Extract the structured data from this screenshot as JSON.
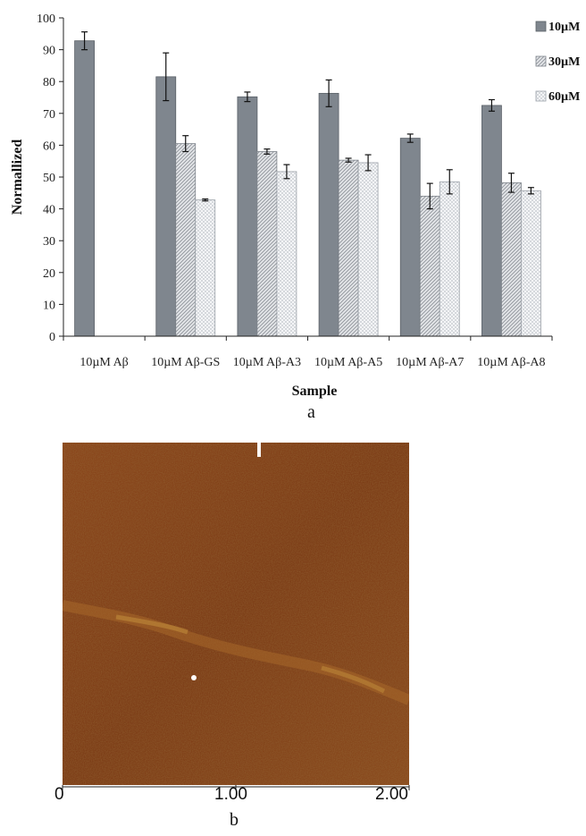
{
  "chart_data": {
    "type": "bar",
    "ylabel": "Normallized",
    "xlabel": "Sample",
    "ylim": [
      0,
      100
    ],
    "yticks": [
      0,
      10,
      20,
      30,
      40,
      50,
      60,
      70,
      80,
      90,
      100
    ],
    "categories": [
      "10µM Aβ",
      "10µM Aβ-GS",
      "10µM Aβ-A3",
      "10µM Aβ-A5",
      "10µM Aβ-A7",
      "10µM Aβ-A8"
    ],
    "legend_position": "top-right",
    "series": [
      {
        "name": "10µM",
        "color": "#7f868e",
        "pattern": "solid",
        "values": [
          92.8,
          81.5,
          75.2,
          76.3,
          62.2,
          72.5
        ],
        "errors": [
          2.8,
          7.5,
          1.5,
          4.2,
          1.3,
          1.8
        ]
      },
      {
        "name": "30µM",
        "color": "#dcdfe3",
        "pattern": "diagonal-hatch",
        "values": [
          null,
          60.5,
          58.0,
          55.3,
          44.0,
          48.2
        ],
        "errors": [
          null,
          2.5,
          0.8,
          0.6,
          4.0,
          3.0
        ]
      },
      {
        "name": "60µM",
        "color": "#f1f3f5",
        "pattern": "crosshatch",
        "values": [
          null,
          42.8,
          51.7,
          54.5,
          48.5,
          45.7
        ],
        "errors": [
          null,
          0.3,
          2.2,
          2.5,
          3.8,
          1.0
        ]
      }
    ]
  },
  "panel_a_label": "a",
  "panel_b_label": "b",
  "afm_image": {
    "scale_ticks": [
      "0",
      "1.00",
      "2.00"
    ],
    "colormap": [
      "#3a1a08",
      "#6a3412",
      "#8e4a1c",
      "#c08a3a",
      "#ffffff"
    ]
  }
}
